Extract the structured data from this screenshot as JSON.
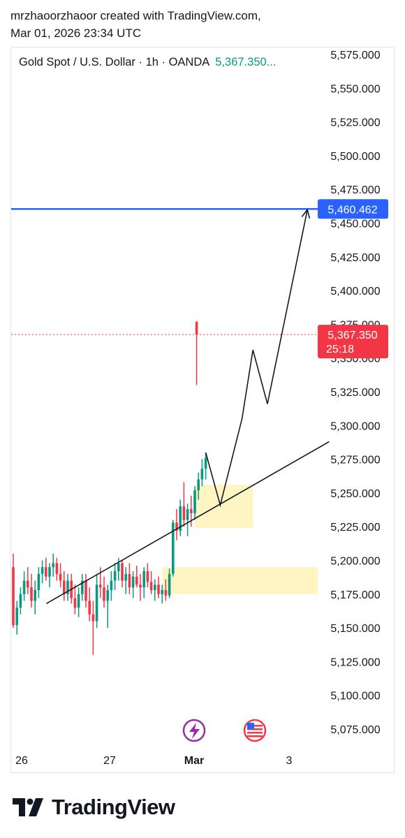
{
  "header": {
    "line1": "mrzhaoorzhaoor created with TradingView.com,",
    "line2": "Mar 01, 2026 23:34 UTC"
  },
  "symbol": {
    "name": "Gold Spot / U.S. Dollar · 1h · OANDA",
    "price": "5,367.350..."
  },
  "colors": {
    "up": "#089981",
    "down": "#f23645",
    "target": "#2962ff",
    "zone": "#fff5c2",
    "event_purple": "#9c27b0",
    "event_red": "#f23645"
  },
  "chart_data": {
    "type": "candlestick",
    "symbol": "XAUUSD",
    "interval": "1h",
    "ylim": [
      5062.5,
      5587.5
    ],
    "y_ticks": [
      "5,575.000",
      "5,550.000",
      "5,525.000",
      "5,500.000",
      "5,475.000",
      "5,450.000",
      "5,425.000",
      "5,400.000",
      "5,375.000",
      "5,350.000",
      "5,325.000",
      "5,300.000",
      "5,275.000",
      "5,250.000",
      "5,225.000",
      "5,200.000",
      "5,175.000",
      "5,150.000",
      "5,125.000",
      "5,100.000",
      "5,075.000"
    ],
    "x_ticks": [
      "26",
      "27",
      "Mar",
      "3"
    ],
    "price_labels": {
      "target": {
        "price": 5460.462,
        "text": "5,460.462"
      },
      "last": {
        "price": 5367.35,
        "text": "5,367.350",
        "countdown": "25:18"
      }
    },
    "candles": [
      {
        "o": 5195,
        "h": 5205,
        "l": 5150,
        "c": 5152
      },
      {
        "o": 5152,
        "h": 5170,
        "l": 5145,
        "c": 5165
      },
      {
        "o": 5165,
        "h": 5180,
        "l": 5160,
        "c": 5175
      },
      {
        "o": 5175,
        "h": 5192,
        "l": 5170,
        "c": 5185
      },
      {
        "o": 5185,
        "h": 5195,
        "l": 5175,
        "c": 5180
      },
      {
        "o": 5180,
        "h": 5190,
        "l": 5165,
        "c": 5170
      },
      {
        "o": 5170,
        "h": 5185,
        "l": 5160,
        "c": 5178
      },
      {
        "o": 5178,
        "h": 5195,
        "l": 5172,
        "c": 5190
      },
      {
        "o": 5190,
        "h": 5200,
        "l": 5183,
        "c": 5195
      },
      {
        "o": 5195,
        "h": 5202,
        "l": 5185,
        "c": 5188
      },
      {
        "o": 5188,
        "h": 5198,
        "l": 5180,
        "c": 5195
      },
      {
        "o": 5195,
        "h": 5205,
        "l": 5188,
        "c": 5198
      },
      {
        "o": 5198,
        "h": 5202,
        "l": 5185,
        "c": 5190
      },
      {
        "o": 5190,
        "h": 5198,
        "l": 5180,
        "c": 5185
      },
      {
        "o": 5185,
        "h": 5192,
        "l": 5170,
        "c": 5175
      },
      {
        "o": 5175,
        "h": 5190,
        "l": 5170,
        "c": 5185
      },
      {
        "o": 5185,
        "h": 5190,
        "l": 5168,
        "c": 5172
      },
      {
        "o": 5172,
        "h": 5182,
        "l": 5160,
        "c": 5165
      },
      {
        "o": 5165,
        "h": 5180,
        "l": 5158,
        "c": 5175
      },
      {
        "o": 5175,
        "h": 5190,
        "l": 5170,
        "c": 5185
      },
      {
        "o": 5185,
        "h": 5190,
        "l": 5165,
        "c": 5170
      },
      {
        "o": 5170,
        "h": 5180,
        "l": 5155,
        "c": 5160
      },
      {
        "o": 5160,
        "h": 5170,
        "l": 5130,
        "c": 5155
      },
      {
        "o": 5155,
        "h": 5190,
        "l": 5150,
        "c": 5182
      },
      {
        "o": 5182,
        "h": 5195,
        "l": 5172,
        "c": 5180
      },
      {
        "o": 5180,
        "h": 5188,
        "l": 5165,
        "c": 5170
      },
      {
        "o": 5170,
        "h": 5182,
        "l": 5150,
        "c": 5178
      },
      {
        "o": 5178,
        "h": 5192,
        "l": 5170,
        "c": 5185
      },
      {
        "o": 5185,
        "h": 5198,
        "l": 5178,
        "c": 5192
      },
      {
        "o": 5192,
        "h": 5202,
        "l": 5185,
        "c": 5198
      },
      {
        "o": 5198,
        "h": 5200,
        "l": 5180,
        "c": 5185
      },
      {
        "o": 5185,
        "h": 5195,
        "l": 5175,
        "c": 5190
      },
      {
        "o": 5190,
        "h": 5198,
        "l": 5175,
        "c": 5180
      },
      {
        "o": 5180,
        "h": 5192,
        "l": 5172,
        "c": 5188
      },
      {
        "o": 5188,
        "h": 5196,
        "l": 5180,
        "c": 5182
      },
      {
        "o": 5182,
        "h": 5190,
        "l": 5170,
        "c": 5180
      },
      {
        "o": 5180,
        "h": 5195,
        "l": 5172,
        "c": 5192
      },
      {
        "o": 5192,
        "h": 5198,
        "l": 5180,
        "c": 5184
      },
      {
        "o": 5184,
        "h": 5192,
        "l": 5175,
        "c": 5178
      },
      {
        "o": 5178,
        "h": 5186,
        "l": 5170,
        "c": 5182
      },
      {
        "o": 5182,
        "h": 5188,
        "l": 5172,
        "c": 5175
      },
      {
        "o": 5175,
        "h": 5182,
        "l": 5168,
        "c": 5178
      },
      {
        "o": 5178,
        "h": 5186,
        "l": 5170,
        "c": 5174
      },
      {
        "o": 5174,
        "h": 5194,
        "l": 5172,
        "c": 5190
      },
      {
        "o": 5190,
        "h": 5230,
        "l": 5188,
        "c": 5228
      },
      {
        "o": 5228,
        "h": 5238,
        "l": 5215,
        "c": 5222
      },
      {
        "o": 5222,
        "h": 5245,
        "l": 5218,
        "c": 5240
      },
      {
        "o": 5240,
        "h": 5258,
        "l": 5225,
        "c": 5230
      },
      {
        "o": 5230,
        "h": 5242,
        "l": 5218,
        "c": 5238
      },
      {
        "o": 5238,
        "h": 5248,
        "l": 5225,
        "c": 5235
      },
      {
        "o": 5235,
        "h": 5255,
        "l": 5230,
        "c": 5252
      },
      {
        "o": 5252,
        "h": 5265,
        "l": 5245,
        "c": 5260
      },
      {
        "o": 5260,
        "h": 5275,
        "l": 5255,
        "c": 5268
      },
      {
        "o": 5268,
        "h": 5280,
        "l": 5260,
        "c": 5276
      },
      {
        "o": 5377,
        "h": 5377,
        "l": 5330,
        "c": 5367.35
      }
    ],
    "drawings": {
      "target_line": 5460.462,
      "trendline": [
        {
          "bar": 2,
          "price": 5168
        },
        {
          "bar": 87,
          "price": 5288
        }
      ],
      "projection_path": [
        {
          "bar": 53,
          "price": 5280
        },
        {
          "bar": 57,
          "price": 5241
        },
        {
          "bar": 63,
          "price": 5305
        },
        {
          "bar": 66,
          "price": 5356
        },
        {
          "bar": 70,
          "price": 5316
        },
        {
          "bar": 81,
          "price": 5460
        }
      ],
      "zones": [
        {
          "from_bar": 50,
          "to_bar": 66,
          "top": 5256,
          "bottom": 5224
        },
        {
          "from_bar": 41,
          "to_bar": 87,
          "top": 5195,
          "bottom": 5175
        }
      ]
    }
  },
  "events": [
    {
      "icon": "lightning-icon"
    },
    {
      "icon": "us-flag-icon"
    }
  ],
  "branding": {
    "logo_text": "TradingView"
  }
}
